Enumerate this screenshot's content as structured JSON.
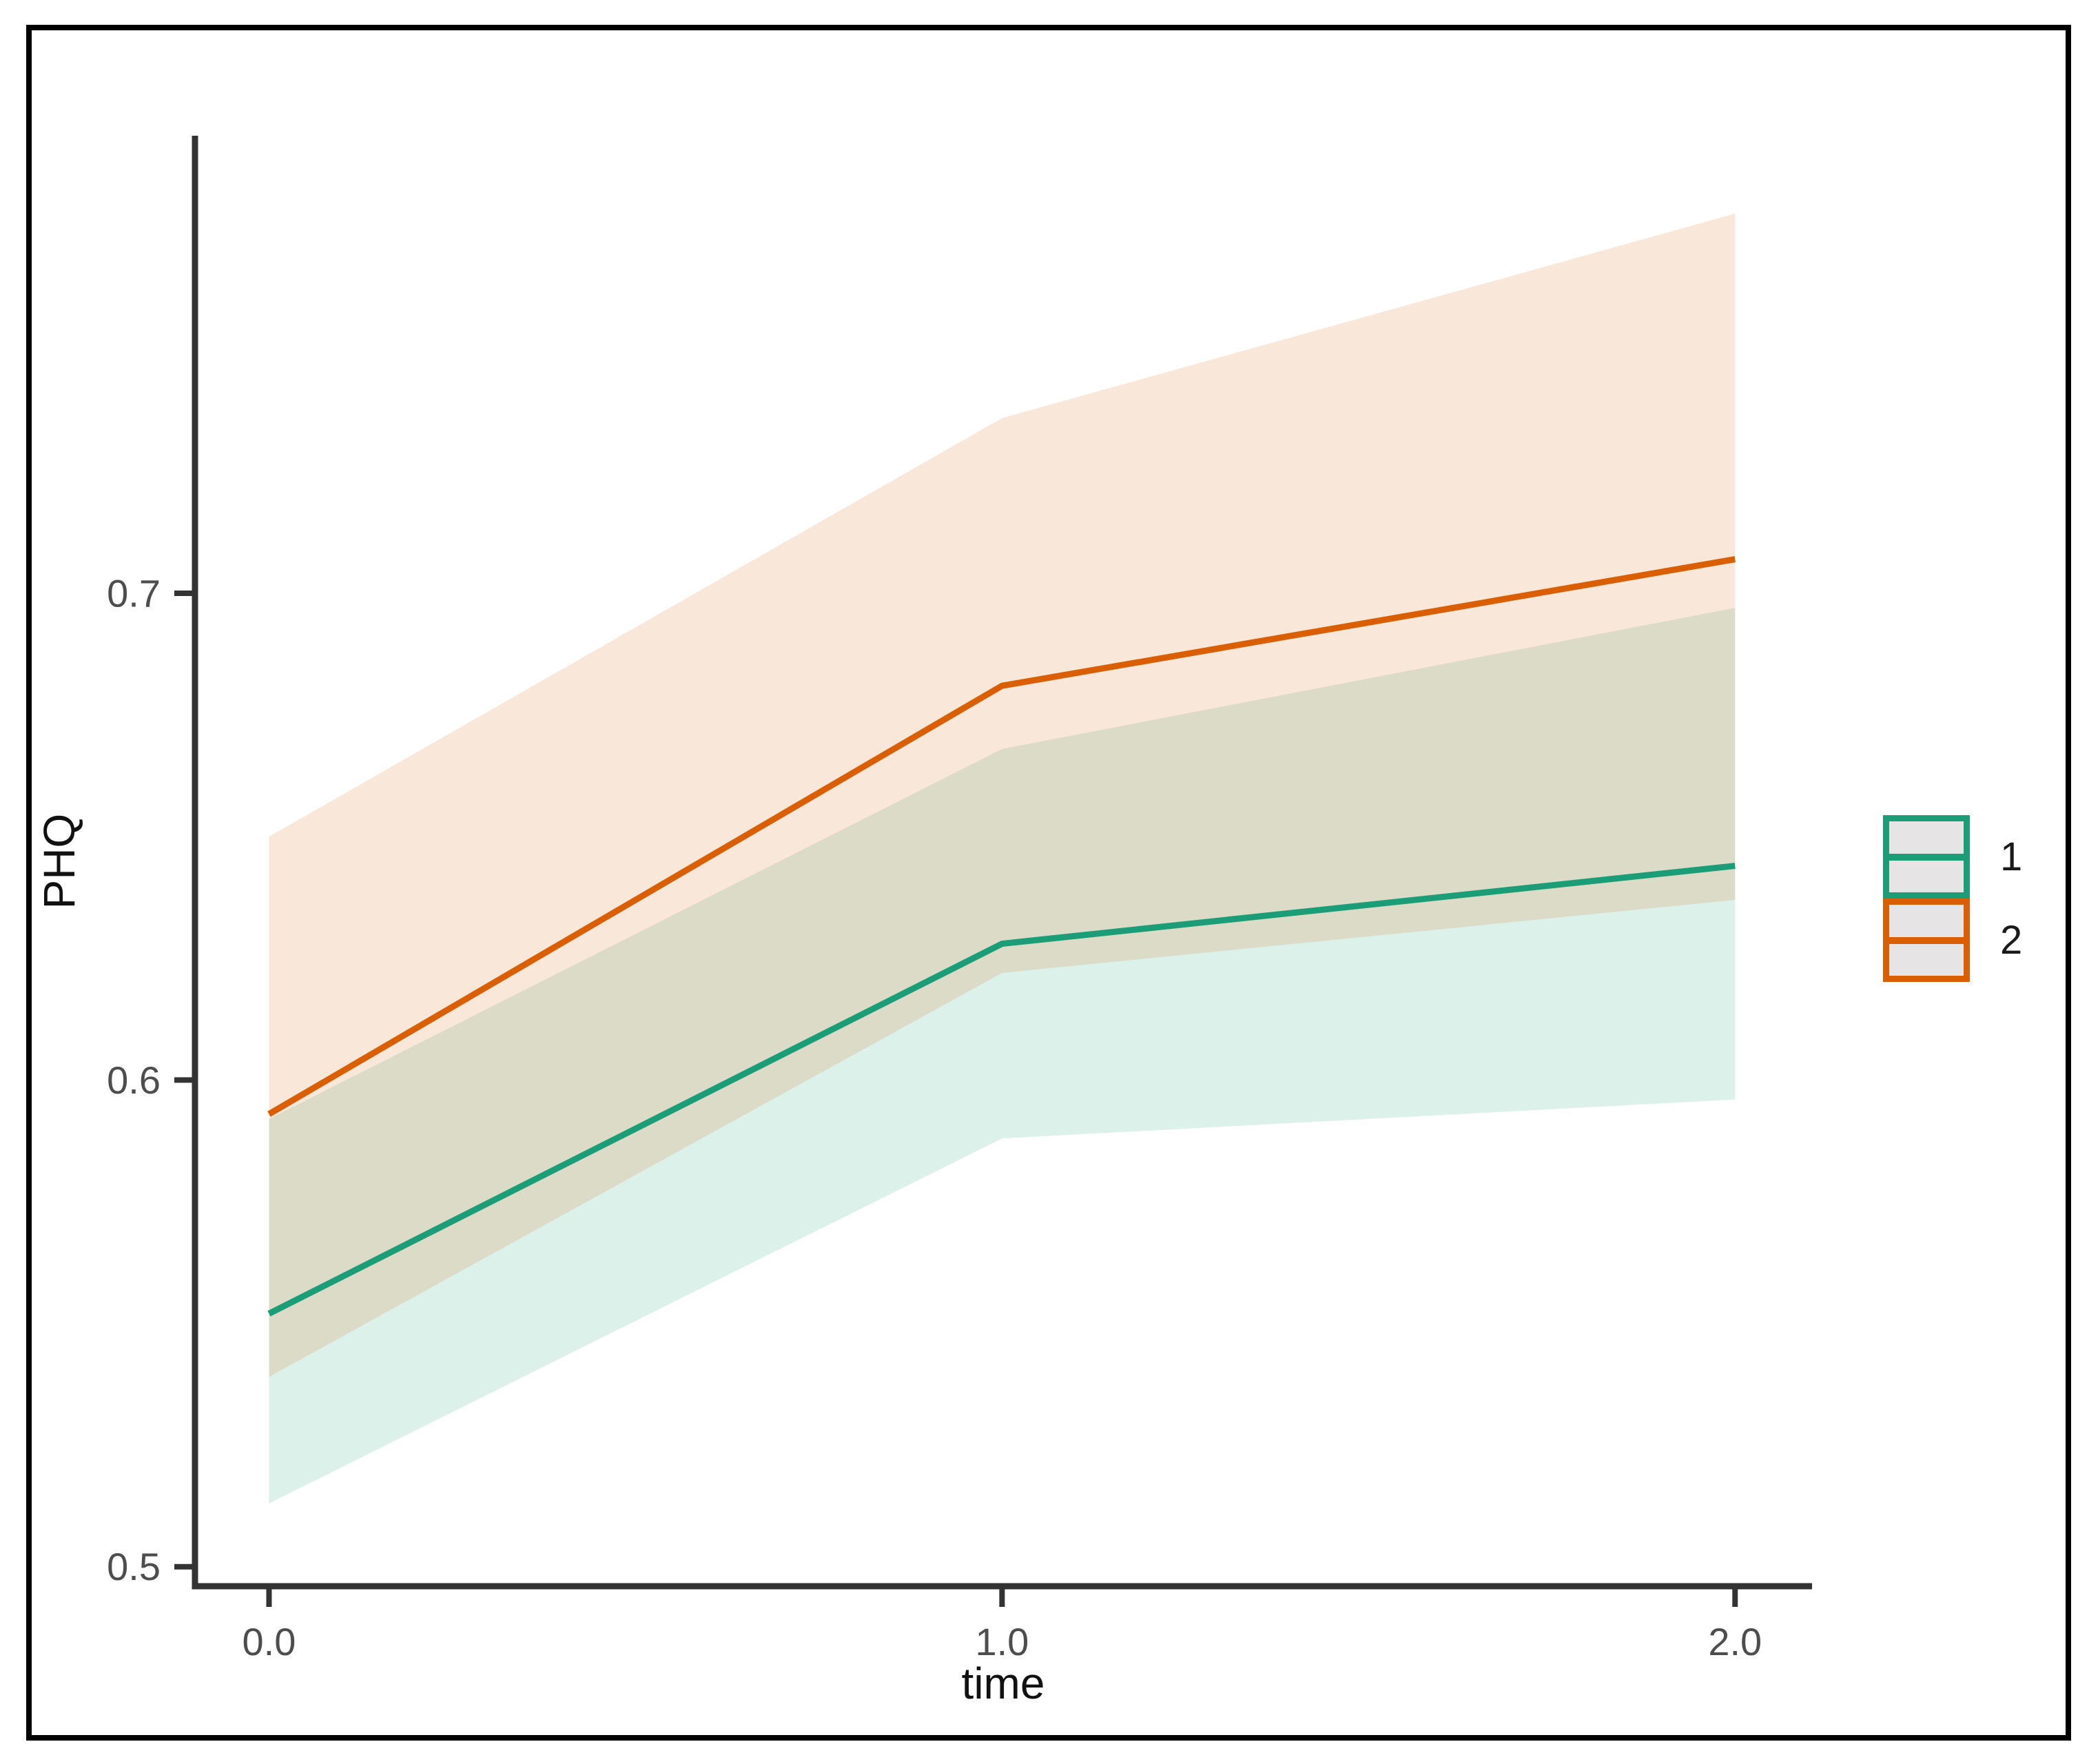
{
  "chart_data": {
    "type": "line",
    "title": "",
    "xlabel": "time",
    "ylabel": "PHQ",
    "x": [
      0.0,
      1.0,
      2.0
    ],
    "x_ticks": [
      0.0,
      1.0,
      2.0
    ],
    "x_tick_labels": [
      "0.0",
      "1.0",
      "2.0"
    ],
    "y_ticks": [
      0.5,
      0.6,
      0.7
    ],
    "y_tick_labels": [
      "0.5",
      "0.6",
      "0.7"
    ],
    "xlim": [
      -0.101,
      2.105
    ],
    "ylim": [
      0.496,
      0.794
    ],
    "grid": false,
    "background": "#ffffff",
    "legend_position": "right",
    "ribbon_opacity": 0.15,
    "axis_color": "#333333",
    "tick_label_color": "#4d4d4d",
    "axis_title_color": "#111111",
    "series": [
      {
        "name": "1",
        "color": "#1B9E77",
        "mean": [
          0.552,
          0.628,
          0.644
        ],
        "lower": [
          0.513,
          0.588,
          0.596
        ],
        "upper": [
          0.592,
          0.668,
          0.697
        ]
      },
      {
        "name": "2",
        "color": "#D95F02",
        "mean": [
          0.593,
          0.681,
          0.707
        ],
        "lower": [
          0.539,
          0.622,
          0.637
        ],
        "upper": [
          0.65,
          0.736,
          0.778
        ]
      }
    ]
  }
}
